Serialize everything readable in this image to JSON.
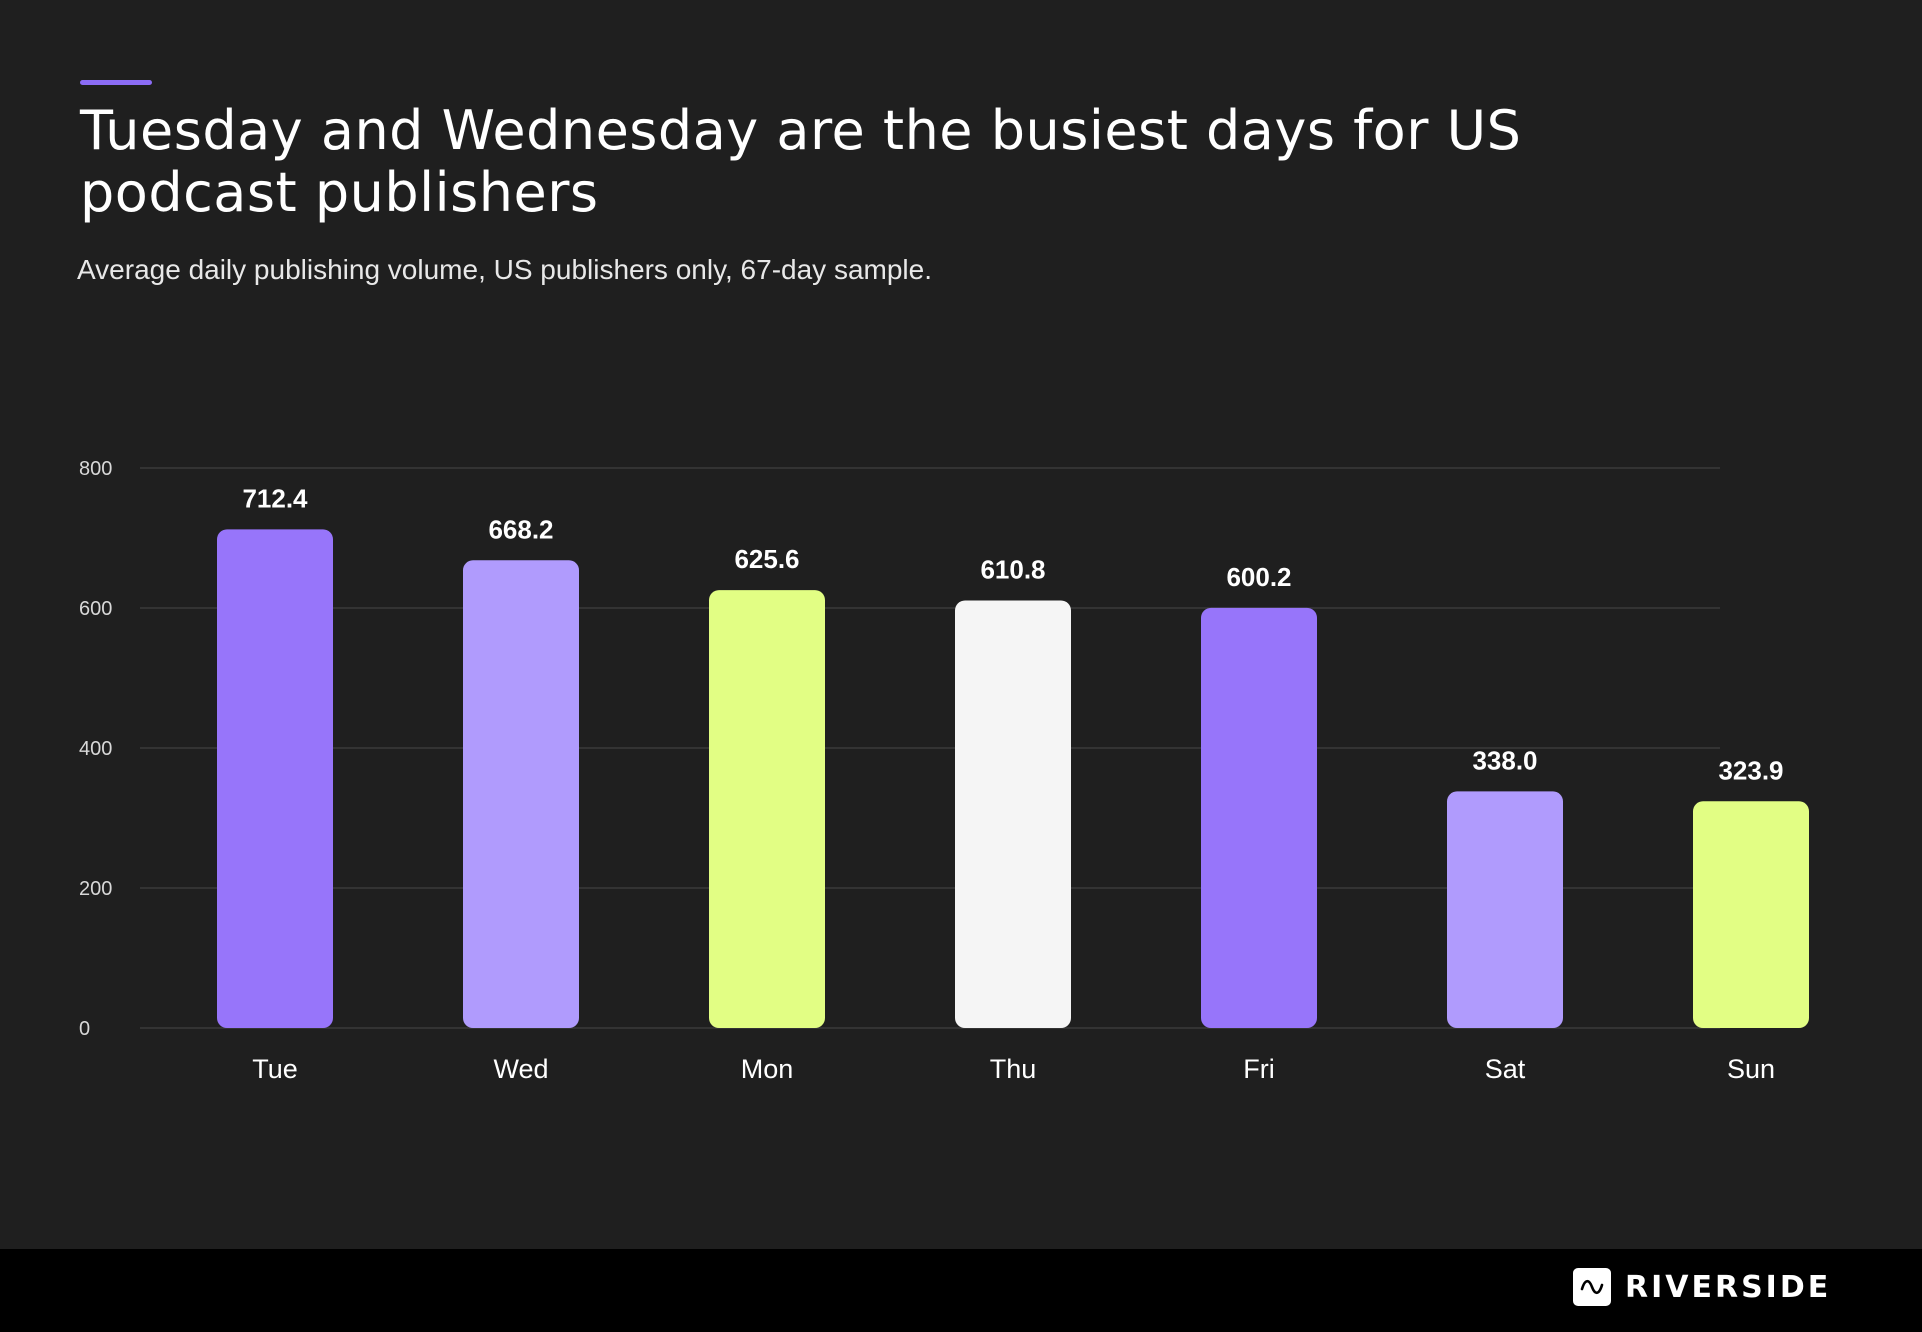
{
  "header": {
    "title": "Tuesday and Wednesday are the busiest days for US podcast publishers",
    "subtitle": "Average daily publishing volume, US publishers only, 67-day sample."
  },
  "footer": {
    "brand": "RIVERSIDE",
    "logo_icon": "riverside-wave-icon"
  },
  "colors": {
    "background": "#1f1f1f",
    "footer": "#000000",
    "accent": "#8b6cf5",
    "gridline": "#3a3a3a"
  },
  "chart_data": {
    "type": "bar",
    "title": "Tuesday and Wednesday are the busiest days for US podcast publishers",
    "subtitle": "Average daily publishing volume, US publishers only, 67-day sample.",
    "xlabel": "",
    "ylabel": "",
    "categories": [
      "Tue",
      "Wed",
      "Mon",
      "Thu",
      "Fri",
      "Sat",
      "Sun"
    ],
    "values": [
      712.4,
      668.2,
      625.6,
      610.8,
      600.2,
      338.0,
      323.9
    ],
    "data_labels": [
      "712.4",
      "668.2",
      "625.6",
      "610.8",
      "600.2",
      "338.0",
      "323.9"
    ],
    "bar_colors": [
      "#9775fa",
      "#b09bfd",
      "#e2fe84",
      "#f5f5f5",
      "#9775fa",
      "#b09bfd",
      "#e2fe84"
    ],
    "ylim": [
      0,
      800
    ],
    "yticks": [
      0,
      200,
      400,
      600,
      800
    ],
    "grid": true,
    "legend": "none"
  }
}
